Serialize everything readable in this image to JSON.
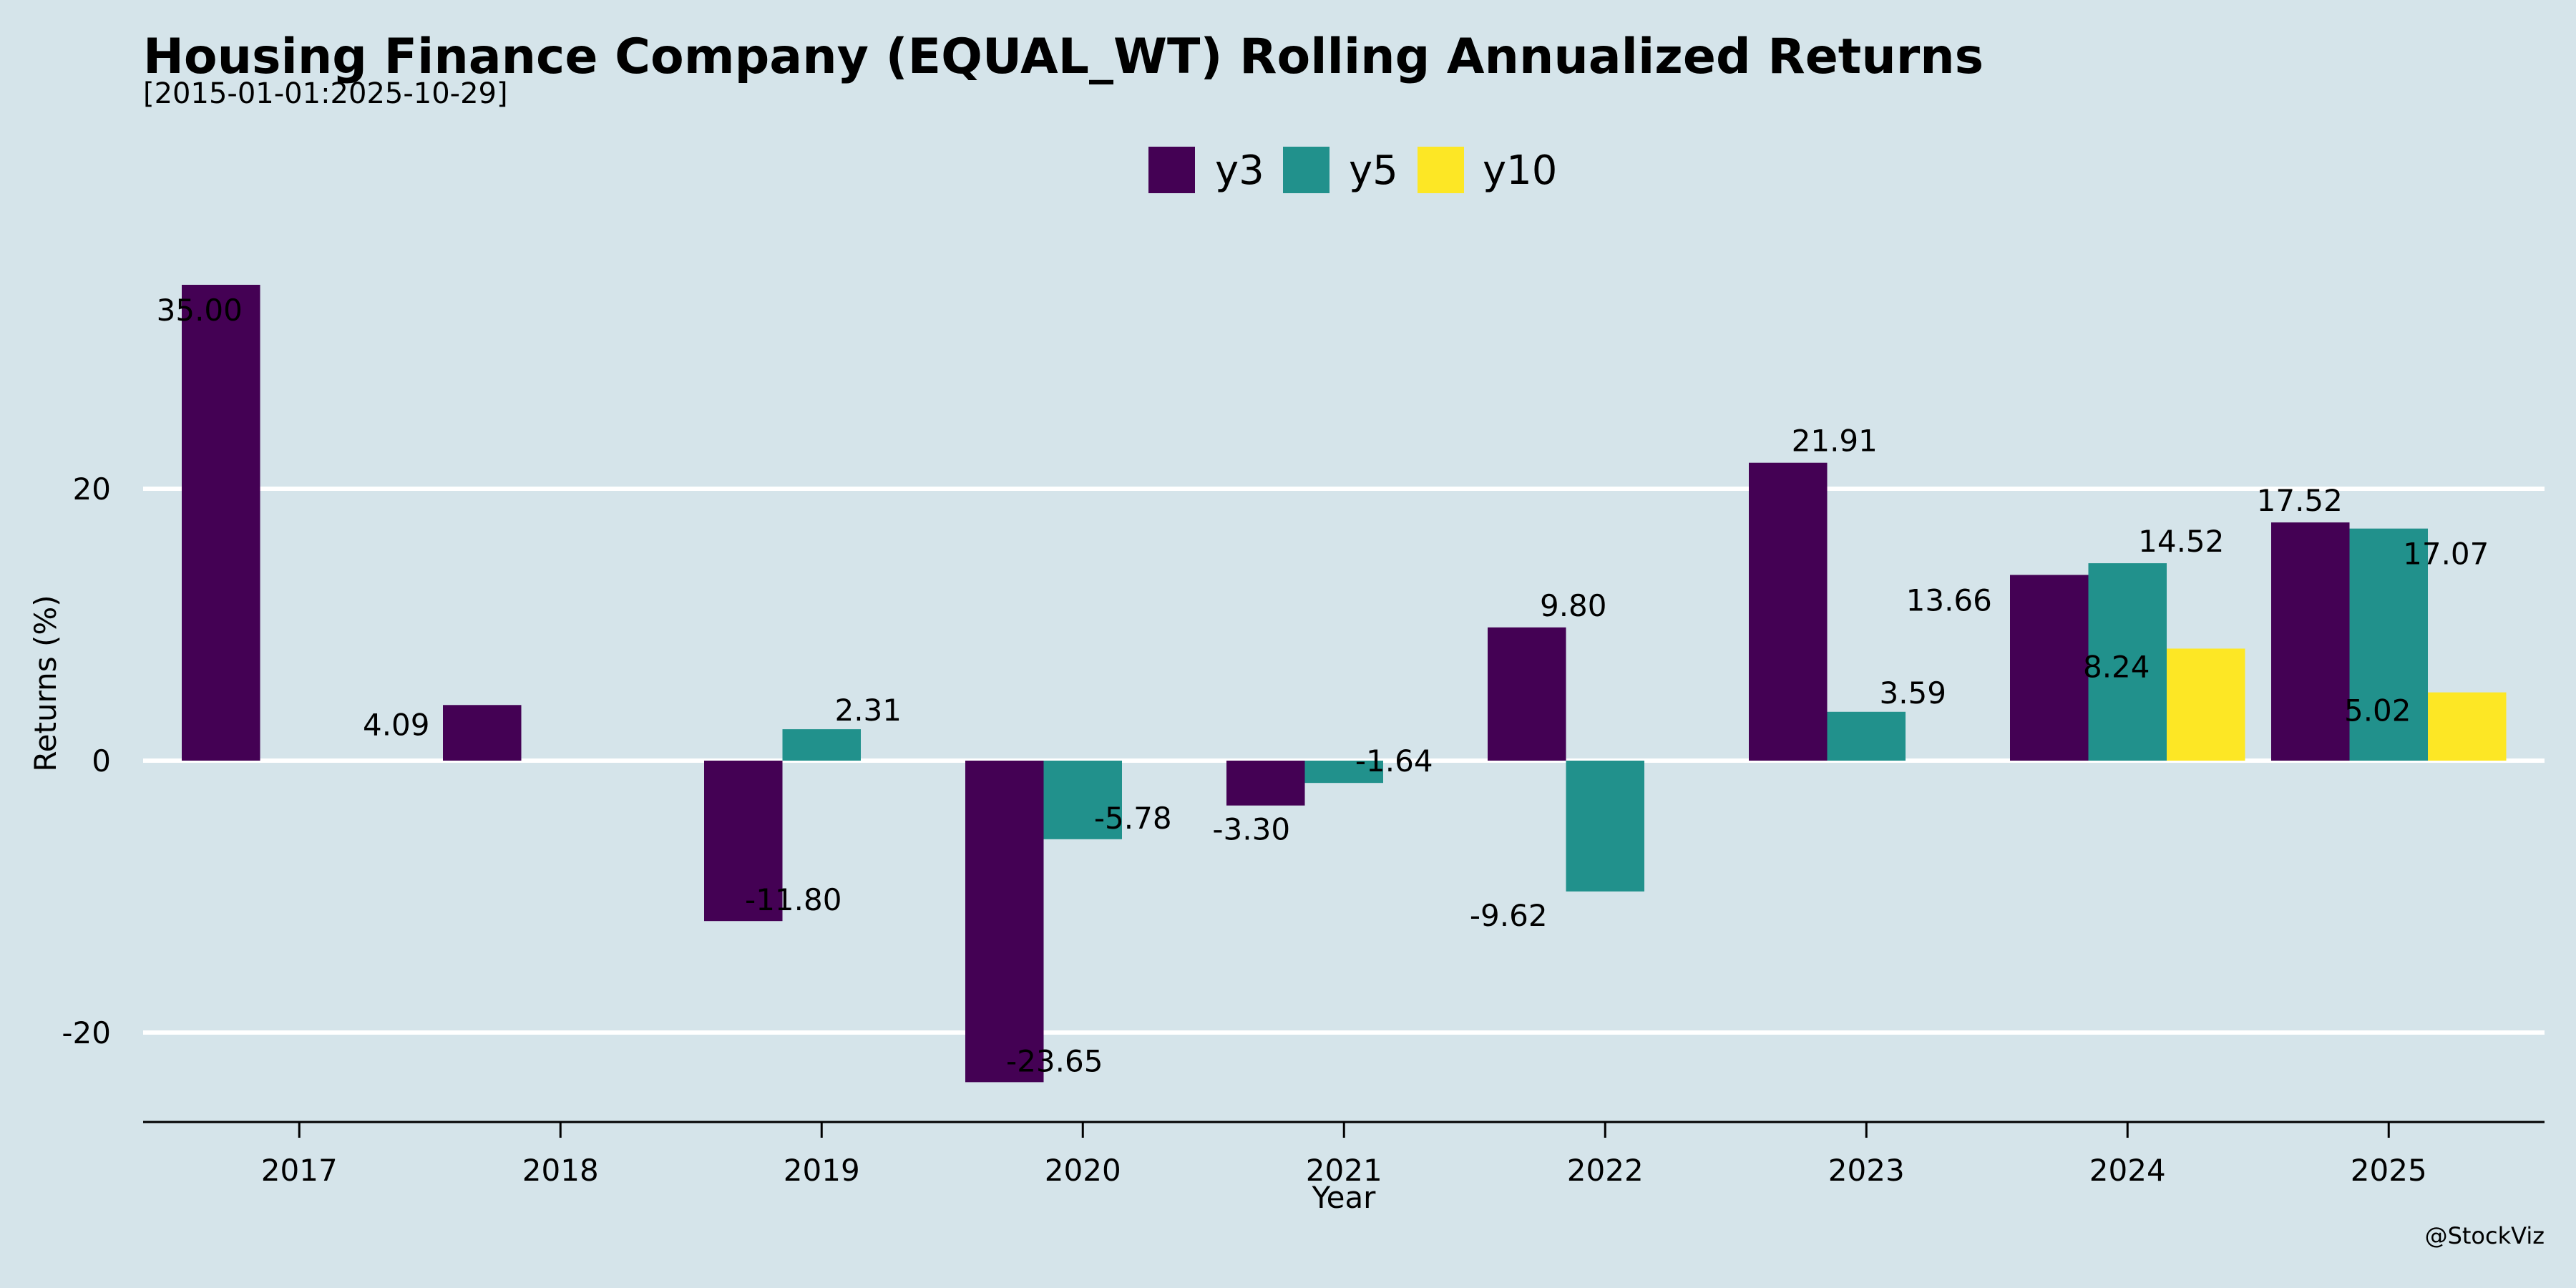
{
  "chart_data": {
    "type": "bar",
    "title": "Housing Finance Company (EQUAL_WT) Rolling Annualized Returns",
    "subtitle": "[2015-01-01:2025-10-29]",
    "xlabel": "Year",
    "ylabel": "Returns (%)",
    "categories": [
      "2017",
      "2018",
      "2019",
      "2020",
      "2021",
      "2022",
      "2023",
      "2024",
      "2025"
    ],
    "series": [
      {
        "name": "y3",
        "color": "#440154",
        "values": [
          35.0,
          4.09,
          -11.8,
          -23.65,
          -3.3,
          9.8,
          21.91,
          13.66,
          17.52
        ]
      },
      {
        "name": "y5",
        "color": "#21918c",
        "values": [
          null,
          null,
          2.31,
          -5.78,
          -1.64,
          -9.62,
          3.59,
          14.52,
          17.07
        ]
      },
      {
        "name": "y10",
        "color": "#fde725",
        "values": [
          null,
          null,
          null,
          null,
          null,
          null,
          null,
          8.24,
          5.02
        ]
      }
    ],
    "yticks": [
      -20,
      0,
      20
    ],
    "ylim": [
      -26.5,
      39
    ],
    "grid": true,
    "legend_position": "top-center"
  },
  "watermark": "@StockViz"
}
